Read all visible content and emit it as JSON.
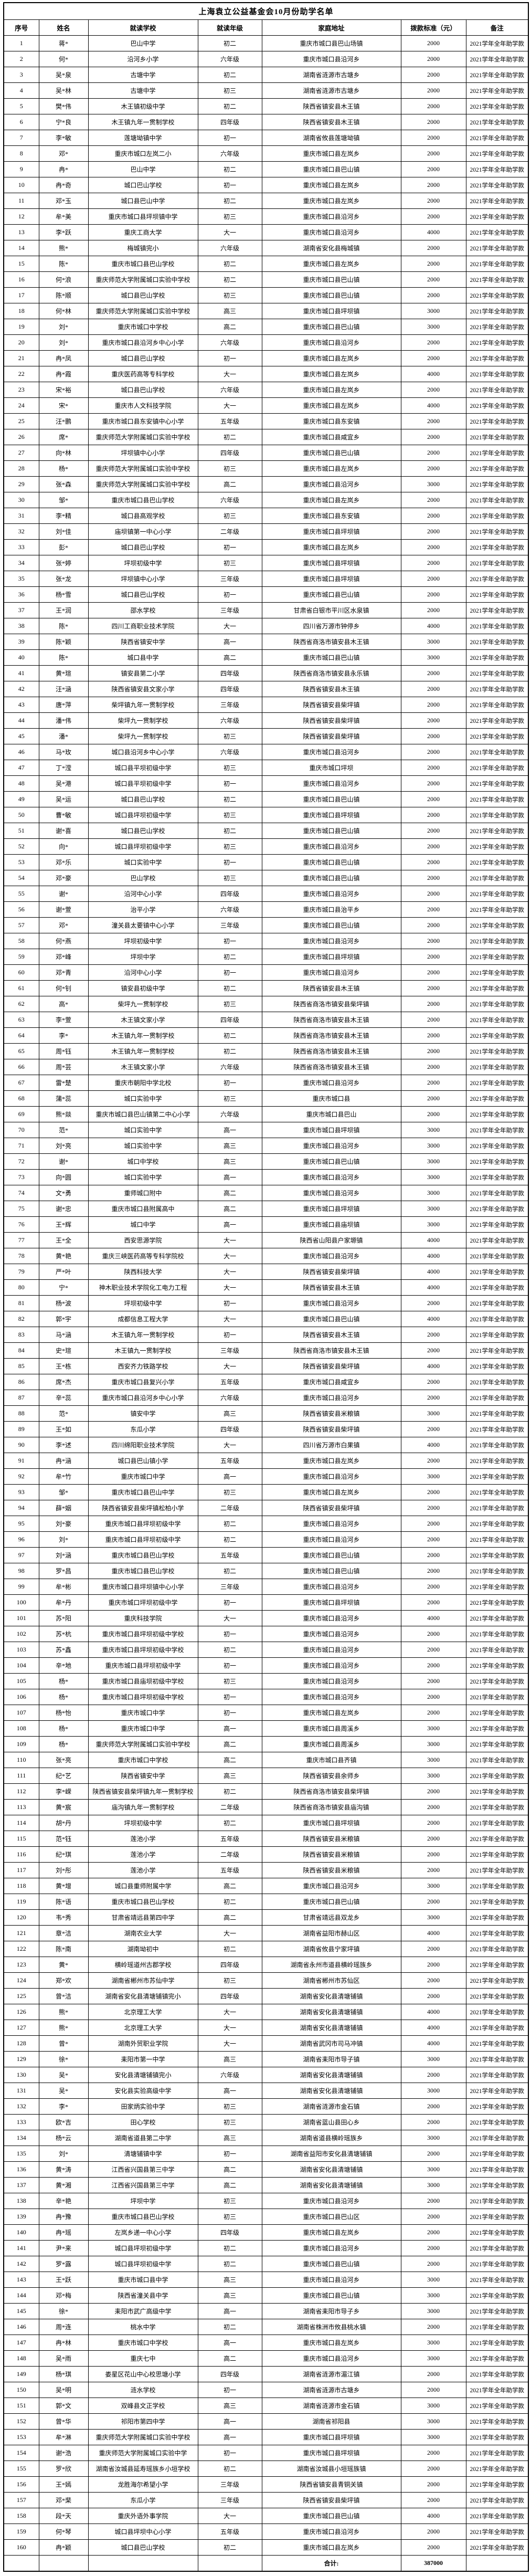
{
  "page": {
    "title": "上海袁立公益基金会10月份助学名单"
  },
  "table": {
    "headers": [
      "序号",
      "姓名",
      "就读学校",
      "就读年级",
      "家庭地址",
      "拨款标准（元）",
      "备注"
    ],
    "note_all_rows": "2021学年全年助学款",
    "rows": [
      [
        "1",
        "蒋*",
        "巴山中学",
        "初二",
        "重庆市城口县巴山场镇",
        "2000"
      ],
      [
        "2",
        "何*",
        "沿河乡小学",
        "六年级",
        "重庆市城口县沿河乡",
        "2000"
      ],
      [
        "3",
        "吴*泉",
        "古塘中学",
        "初二",
        "湖南省涟源市古塘乡",
        "2000"
      ],
      [
        "4",
        "吴*林",
        "古塘中学",
        "初三",
        "湖南省涟源市古塘乡",
        "2000"
      ],
      [
        "5",
        "樊*伟",
        "木王镇初级中学",
        "初二",
        "陕西省镇安县木王镇",
        "2000"
      ],
      [
        "6",
        "宁*良",
        "木王镇九年一贯制学校",
        "四年级",
        "陕西省镇安县木王镇",
        "2000"
      ],
      [
        "7",
        "李*敏",
        "莲塘坳镇中学",
        "初一",
        "湖南省攸县莲塘坳镇",
        "2000"
      ],
      [
        "8",
        "邓*",
        "重庆市城口左岚二小",
        "六年级",
        "重庆市城口县左岚乡",
        "2000"
      ],
      [
        "9",
        "冉*",
        "巴山中学",
        "初二",
        "重庆市城口县巴山镇",
        "2000"
      ],
      [
        "10",
        "冉*奇",
        "城口巴山学校",
        "初一",
        "重庆市城口县左岚乡",
        "2000"
      ],
      [
        "11",
        "邓*玉",
        "城口县巴山中学",
        "初二",
        "重庆市城口县左岚乡",
        "2000"
      ],
      [
        "12",
        "牟*美",
        "重庆市城口县坪坝镇中学",
        "初三",
        "重庆市城口县沿河乡",
        "2000"
      ],
      [
        "13",
        "李*跃",
        "重庆工商大学",
        "大一",
        "重庆市城口县沿河乡",
        "4000"
      ],
      [
        "14",
        "熊*",
        "梅城镇完小",
        "六年级",
        "湖南省安化县梅城镇",
        "2000"
      ],
      [
        "15",
        "陈*",
        "重庆市城口县巴山学校",
        "初二",
        "重庆市城口县左岚乡",
        "2000"
      ],
      [
        "16",
        "何*浪",
        "重庆师范大学附属城口实验中学校",
        "初二",
        "重庆市城口县巴山镇",
        "2000"
      ],
      [
        "17",
        "陈*顺",
        "城口县巴山学校",
        "初三",
        "重庆市城口县巴山镇",
        "2000"
      ],
      [
        "18",
        "何*林",
        "重庆师范大学附属城口实验中学校",
        "高三",
        "重庆市城口县坪坝镇",
        "3000"
      ],
      [
        "19",
        "刘*",
        "重庆市城口中学校",
        "高二",
        "重庆市城口县巴山镇",
        "3000"
      ],
      [
        "20",
        "刘*",
        "重庆市城口县沿河乡中心小学",
        "六年级",
        "重庆市城口县沿河乡",
        "2000"
      ],
      [
        "21",
        "冉*凤",
        "城口县巴山学校",
        "初一",
        "重庆市城口县左岚乡",
        "2000"
      ],
      [
        "22",
        "冉*霞",
        "重庆医药高等专科学校",
        "大一",
        "重庆市城口县左岚乡",
        "4000"
      ],
      [
        "23",
        "宋*裕",
        "城口县巴山学校",
        "六年级",
        "重庆市城口县左岚乡",
        "2000"
      ],
      [
        "24",
        "宋*",
        "重庆市人文科技学院",
        "大一",
        "重庆市城口县左岚乡",
        "4000"
      ],
      [
        "25",
        "汪*鹏",
        "重庆市城口县东安镇中心小学",
        "五年级",
        "重庆市城口县东安镇",
        "2000"
      ],
      [
        "26",
        "席*",
        "重庆师范大学附属城口实验中学校",
        "初二",
        "重庆市城口县咸宜乡",
        "2000"
      ],
      [
        "27",
        "向*林",
        "坪坝镇中心小学",
        "四年级",
        "重庆市城口县巴山镇",
        "2000"
      ],
      [
        "28",
        "杨*",
        "重庆师范大学附属城口实验中学校",
        "初三",
        "重庆市城口县左岚乡",
        "2000"
      ],
      [
        "29",
        "张*森",
        "重庆师范大学附属城口实验中学校",
        "高二",
        "重庆市城口县沿河乡",
        "3000"
      ],
      [
        "30",
        "邹*",
        "重庆市城口县巴山学校",
        "六年级",
        "重庆市城口县左岚乡",
        "2000"
      ],
      [
        "31",
        "李*精",
        "城口县高观学校",
        "初三",
        "重庆市城口县东安镇",
        "2000"
      ],
      [
        "32",
        "刘*佳",
        "庙坝镇第一中心小学",
        "二年级",
        "重庆市城口县坪坝镇",
        "2000"
      ],
      [
        "33",
        "彭*",
        "城口县巴山学校",
        "初一",
        "重庆市城口县左岚乡",
        "2000"
      ],
      [
        "34",
        "张*婷",
        "坪坝初级中学",
        "初三",
        "重庆市城口县坪坝镇",
        "2000"
      ],
      [
        "35",
        "张*龙",
        "坪坝镇中心小学",
        "三年级",
        "重庆市城口县坪坝镇",
        "2000"
      ],
      [
        "36",
        "杨*雪",
        "城口县巴山学校",
        "初一",
        "重庆市城口县巴山镇",
        "2000"
      ],
      [
        "37",
        "王*润",
        "邵水学校",
        "三年级",
        "甘肃省白银市平川区水泉镇",
        "2000"
      ],
      [
        "38",
        "陈*",
        "四川工商职业技术学院",
        "大一",
        "四川省万源市钟停乡",
        "4000"
      ],
      [
        "39",
        "陈*颖",
        "陕西省镇安中学",
        "高一",
        "陕西省商洛市镇安县木王镇",
        "3000"
      ],
      [
        "40",
        "陈*",
        "城口县中学",
        "高二",
        "重庆市城口县巴山镇",
        "3000"
      ],
      [
        "41",
        "黄*瑄",
        "镇安县第二小学",
        "四年级",
        "陕西省商洛市镇安县永乐镇",
        "2000"
      ],
      [
        "42",
        "汪*涵",
        "陕西省镇安县文家小学",
        "四年级",
        "陕西省镇安县木王镇",
        "2000"
      ],
      [
        "43",
        "唐*萍",
        "柴坪镇九年一贯制学校",
        "三年级",
        "陕西省镇安县柴坪镇",
        "2000"
      ],
      [
        "44",
        "潘*伟",
        "柴坪九一贯制学校",
        "六年级",
        "陕西省镇安县柴坪镇",
        "2000"
      ],
      [
        "45",
        "潘*",
        "柴坪九一贯制学校",
        "初三",
        "陕西省镇安县柴坪镇",
        "2000"
      ],
      [
        "46",
        "马*玫",
        "城口县沿河乡中心小学",
        "六年级",
        "重庆市城口县沿河乡",
        "2000"
      ],
      [
        "47",
        "丁*滢",
        "城口县平坝初级中学",
        "初三",
        "重庆市城口坪坝",
        "2000"
      ],
      [
        "48",
        "吴*港",
        "城口县平坝初级中学",
        "初一",
        "重庆市城口县沿河乡",
        "2000"
      ],
      [
        "49",
        "吴*运",
        "城口县巴山学校",
        "初二",
        "重庆市城口县巴山镇",
        "2000"
      ],
      [
        "50",
        "曹*敏",
        "城口县坪坝初级中学",
        "初三",
        "重庆市城口县坪坝镇",
        "2000"
      ],
      [
        "51",
        "谢*喜",
        "城口县巴山学校",
        "初二",
        "重庆市城口县巴山镇",
        "2000"
      ],
      [
        "52",
        "向*",
        "城口县坪坝初级中学",
        "初三",
        "重庆市城口县沿河乡",
        "2000"
      ],
      [
        "53",
        "邓*乐",
        "城口实验中学",
        "初一",
        "重庆市城口县巴山镇",
        "2000"
      ],
      [
        "54",
        "邓*豪",
        "巴山学校",
        "初三",
        "重庆市城口县巴山镇",
        "2000"
      ],
      [
        "55",
        "谢*",
        "沿河中心小学",
        "四年级",
        "重庆市城口县沿河乡",
        "2000"
      ],
      [
        "56",
        "谢*萱",
        "治平小学",
        "六年级",
        "重庆市城口县治平乡",
        "2000"
      ],
      [
        "57",
        "邓*",
        "潼关县太要镇中心小学",
        "三年级",
        "重庆市城口县巴山镇",
        "2000"
      ],
      [
        "58",
        "何*燕",
        "坪坝初级中学",
        "初一",
        "重庆市城口县沿河乡",
        "2000"
      ],
      [
        "59",
        "邓*峰",
        "坪坝中学",
        "初二",
        "重庆市城口县坪坝镇",
        "2000"
      ],
      [
        "60",
        "邓*青",
        "沿河中心小学",
        "初一",
        "重庆市城口县沿河乡",
        "2000"
      ],
      [
        "61",
        "何*钊",
        "镇安县初级中学",
        "初二",
        "陕西省镇安县木王镇",
        "2000"
      ],
      [
        "62",
        "高*",
        "柴坪九一贯制学校",
        "初三",
        "陕西省商洛市镇安县柴坪镇",
        "2000"
      ],
      [
        "63",
        "李*萱",
        "木王镇文家小学",
        "四年级",
        "陕西省商洛市镇安县木王镇",
        "2000"
      ],
      [
        "64",
        "李*",
        "木王镇九年一贯制学校",
        "初二",
        "陕西省商洛市镇安县木王镇",
        "2000"
      ],
      [
        "65",
        "周*钰",
        "木王镇九年一贯制学校",
        "初二",
        "陕西省商洛市镇安县木王镇",
        "2000"
      ],
      [
        "66",
        "周*芸",
        "木王镇文家小学",
        "六年级",
        "陕西省商洛市镇安县木王镇",
        "2000"
      ],
      [
        "67",
        "雷*楚",
        "重庆市朝阳中学北校",
        "初一",
        "重庆市城口县沿河乡",
        "2000"
      ],
      [
        "68",
        "蒲*蕊",
        "城口实验中学",
        "初三",
        "重庆市城口县",
        "2000"
      ],
      [
        "69",
        "熊*燚",
        "重庆市城口县巴山镇第二中心小学",
        "六年级",
        "重庆市城口县巴山",
        "2000"
      ],
      [
        "70",
        "范*",
        "城口实验中学",
        "高一",
        "重庆市城口县坪坝镇",
        "3000"
      ],
      [
        "71",
        "刘*亮",
        "城口实验中学",
        "高三",
        "重庆市城口县沿河乡",
        "3000"
      ],
      [
        "72",
        "谢*",
        "城口中学校",
        "高三",
        "重庆市城口县巴山镇",
        "3000"
      ],
      [
        "73",
        "向*圆",
        "城口实验中学",
        "高一",
        "重庆市城口县沿河乡",
        "3000"
      ],
      [
        "74",
        "文*勇",
        "重师城口附中",
        "高二",
        "重庆市城口县沿河乡",
        "3000"
      ],
      [
        "75",
        "谢*忠",
        "重庆市城口县附属高中",
        "高二",
        "重庆市城口县坪坝镇",
        "3000"
      ],
      [
        "76",
        "王*辉",
        "城口中学",
        "高一",
        "重庆市城口县庙坝镇",
        "3000"
      ],
      [
        "77",
        "王*全",
        "西安思源学院",
        "大一",
        "陕西省山阳县户家塬镇",
        "4000"
      ],
      [
        "78",
        "黄*艳",
        "重庆三峡医药高等专科学院校",
        "大一",
        "重庆市城口县沿河乡",
        "4000"
      ],
      [
        "79",
        "严*叶",
        "陕西科技大学",
        "大一",
        "陕西省镇安县柴坪镇",
        "4000"
      ],
      [
        "80",
        "宁*",
        "神木职业技术学院化工电力工程",
        "大一",
        "陕西省镇安县木王镇",
        "4000"
      ],
      [
        "81",
        "杨*波",
        "坪坝初级中学",
        "初一",
        "重庆市城口县沿河乡",
        "2000"
      ],
      [
        "82",
        "郭*宇",
        "成都信息工程大学",
        "大一",
        "重庆市城口县巴山镇",
        "4000"
      ],
      [
        "83",
        "马*涵",
        "木王镇九年一贯制学校",
        "初一",
        "陕西省镇安县木王镇",
        "2000"
      ],
      [
        "84",
        "史*瑄",
        "木王镇九一贯制学校",
        "三年级",
        "陕西省商洛市镇安县木王镇",
        "2000"
      ],
      [
        "85",
        "王*栋",
        "西安齐力铁路学校",
        "大一",
        "陕西省镇安县柴坪镇",
        "4000"
      ],
      [
        "86",
        "席*杰",
        "重庆市城口县复兴小学",
        "五年级",
        "重庆市城口县咸宜乡",
        "2000"
      ],
      [
        "87",
        "辛*蕊",
        "重庆市城口县沿河乡中心小学",
        "六年级",
        "重庆市城口县沿河乡",
        "2000"
      ],
      [
        "88",
        "范*",
        "镇安中学",
        "高三",
        "陕西省镇安县米粮镇",
        "3000"
      ],
      [
        "89",
        "王*如",
        "东瓜小学",
        "四年级",
        "陕西省镇安县柴坪镇",
        "2000"
      ],
      [
        "90",
        "李*述",
        "四川绵阳职业技术学院",
        "大一",
        "四川省万源市白果镇",
        "4000"
      ],
      [
        "91",
        "冉*涵",
        "城口县巴山镇小学",
        "五年级",
        "重庆市城口县左岚乡",
        "2000"
      ],
      [
        "92",
        "牟*竹",
        "重庆市城口中学",
        "高一",
        "重庆市城口县沿河乡",
        "3000"
      ],
      [
        "93",
        "邹*",
        "重庆市城口县巴山中学",
        "初三",
        "重庆市城口县左岚乡",
        "2000"
      ],
      [
        "94",
        "薛*姻",
        "陕西省镇安县柴坪镇松柏小学",
        "二年级",
        "陕西省镇安县柴坪镇",
        "2000"
      ],
      [
        "95",
        "刘*豪",
        "重庆市城口县坪坝初级中学",
        "初二",
        "重庆市城口县沿河乡",
        "2000"
      ],
      [
        "96",
        "刘*",
        "重庆市城口县坪坝初级中学",
        "初二",
        "重庆市城口县沿河乡",
        "2000"
      ],
      [
        "97",
        "刘*涵",
        "重庆市城口县巴山学校",
        "五年级",
        "重庆市城口县巴山镇",
        "2000"
      ],
      [
        "98",
        "罗*昌",
        "重庆市城口县巴山学校",
        "初二",
        "重庆市城口县巴山镇",
        "2000"
      ],
      [
        "99",
        "牟*彬",
        "重庆市城口县坪坝镇中心小学",
        "三年级",
        "重庆市城口县沿河乡",
        "2000"
      ],
      [
        "100",
        "牟*丹",
        "重庆市城口坪坝初级中学",
        "初一",
        "重庆市城口县坪坝镇",
        "2000"
      ],
      [
        "101",
        "苏*阳",
        "重庆科技学院",
        "大一",
        "重庆市城口县沿河乡",
        "4000"
      ],
      [
        "102",
        "苏*杭",
        "重庆市城口县坪坝初级中学校",
        "初一",
        "重庆市城口县沿河乡",
        "2000"
      ],
      [
        "103",
        "苏*鑫",
        "重庆市城口县坪坝初级中学校",
        "初二",
        "重庆市城口县沿河乡",
        "2000"
      ],
      [
        "104",
        "辛*地",
        "重庆市城口县坪坝初级中学",
        "初一",
        "重庆市城口县沿河乡",
        "2000"
      ],
      [
        "105",
        "杨*",
        "重庆市城口县庙坝初级中学校",
        "初三",
        "重庆市城口县沿河乡",
        "2000"
      ],
      [
        "106",
        "杨*",
        "重庆市城口县坪坝初级中学校",
        "初一",
        "重庆市城口县沿河乡",
        "2000"
      ],
      [
        "107",
        "杨*怡",
        "重庆市城口中学",
        "初一",
        "重庆市城口县左岚乡",
        "2000"
      ],
      [
        "108",
        "杨*",
        "重庆市城口中学",
        "高一",
        "重庆市城口县周溪乡",
        "3000"
      ],
      [
        "109",
        "杨*",
        "重庆师范大学附属城口实验中学校",
        "高二",
        "重庆市城口县周溪乡",
        "3000"
      ],
      [
        "110",
        "张*亮",
        "重庆市城口中学校",
        "高二",
        "重庆市城口县齐镇",
        "3000"
      ],
      [
        "111",
        "纪*艺",
        "陕西省镇安中学",
        "高三",
        "陕西省镇安县余师乡",
        "3000"
      ],
      [
        "112",
        "李*嵘",
        "陕西省镇安县柴坪镇九年一贯制学校",
        "初二",
        "陕西省商洛市镇安县柴坪镇",
        "2000"
      ],
      [
        "113",
        "黄*宸",
        "庙沟镇九年一贯制学校",
        "二年级",
        "陕西省商洛市镇安县庙沟镇",
        "2000"
      ],
      [
        "114",
        "胡*丹",
        "坪坝初级中学",
        "初二",
        "重庆市城口县坪坝镇",
        "2000"
      ],
      [
        "115",
        "范*钰",
        "莲池小学",
        "五年级",
        "陕西省镇安县米粮镇",
        "2000"
      ],
      [
        "116",
        "纪*琪",
        "莲池小学",
        "二年级",
        "陕西省镇安县米粮镇",
        "2000"
      ],
      [
        "117",
        "刘*彤",
        "莲池小学",
        "五年级",
        "陕西省镇安县米粮镇",
        "2000"
      ],
      [
        "118",
        "黄*增",
        "城口县重师附属中学",
        "高二",
        "重庆市城口县沿河乡",
        "3000"
      ],
      [
        "119",
        "陈*语",
        "重庆市城口县巴山学校",
        "初二",
        "重庆市城口县巴山镇",
        "2000"
      ],
      [
        "120",
        "韦*秀",
        "甘肃省靖远县第四中学",
        "高二",
        "甘肃省靖远县双龙乡",
        "3000"
      ],
      [
        "121",
        "章*洁",
        "湖南农业大学",
        "大一",
        "湖南省益阳市赫山区",
        "4000"
      ],
      [
        "122",
        "陈*南",
        "湖南坳初中",
        "初二",
        "湖南省攸县宁家坪镇",
        "2000"
      ],
      [
        "123",
        "黄*",
        "横岭瑶道州古郡学校",
        "四年级",
        "湖南省永州市道县横岭瑶族乡",
        "2000"
      ],
      [
        "124",
        "郑*欢",
        "湖南省郴州市苏仙中学",
        "初三",
        "湖南省郴州市苏仙区",
        "2000"
      ],
      [
        "125",
        "曾*洁",
        "湖南省安化县清塘铺镇完小",
        "四年级",
        "湖南省安化县清塘铺镇",
        "2000"
      ],
      [
        "126",
        "熊*",
        "北京理工大学",
        "大一",
        "湖南省安化县清塘铺镇",
        "4000"
      ],
      [
        "127",
        "熊*",
        "北京理工大学",
        "大一",
        "湖南省安化县清塘铺镇",
        "4000"
      ],
      [
        "128",
        "曾*",
        "湖南外贸职业学院",
        "大一",
        "湖南省武冈市司马冲镇",
        "4000"
      ],
      [
        "129",
        "徐*",
        "耒阳市第一中学",
        "高三",
        "湖南省耒阳市导子镇",
        "3000"
      ],
      [
        "130",
        "吴*",
        "安化县清塘铺镇完小",
        "六年级",
        "湖南省安化县清塘铺镇",
        "2000"
      ],
      [
        "131",
        "吴*",
        "安化县实验高级中学",
        "高一",
        "湖南省安化县清塘铺镇",
        "3000"
      ],
      [
        "132",
        "李*",
        "田家炳实验中学",
        "初三",
        "湖南省涟源市金石镇",
        "2000"
      ],
      [
        "133",
        "欧*吉",
        "田心学校",
        "初三",
        "湖南省蓝山县田心乡",
        "2000"
      ],
      [
        "134",
        "杨*云",
        "湖南省道县第二中学",
        "高三",
        "湖南省道县横岭瑶族乡",
        "3000"
      ],
      [
        "135",
        "刘*",
        "清塘铺镇中学",
        "初一",
        "湖南省益阳市安化县清塘铺镇",
        "2000"
      ],
      [
        "136",
        "黄*涛",
        "江西省兴国县第三中学",
        "高二",
        "湖南省安化县清塘铺镇",
        "3000"
      ],
      [
        "137",
        "黄*湘",
        "江西省兴国县第三中学",
        "高二",
        "湖南省安化县清塘铺镇",
        "3000"
      ],
      [
        "138",
        "辛*艳",
        "坪坝中学",
        "初三",
        "重庆市城口县沿河乡",
        "2000"
      ],
      [
        "139",
        "冉*豫",
        "重庆市城口县巴山学校",
        "初三",
        "重庆市城口县巴山区",
        "2000"
      ],
      [
        "140",
        "冉*瑶",
        "左岚乡递一中心小学",
        "四年级",
        "重庆市城口县左岚乡",
        "2000"
      ],
      [
        "141",
        "尹*来",
        "城口县坪坝初级中学",
        "初二",
        "重庆市城口县沿河乡",
        "2000"
      ],
      [
        "142",
        "罗*露",
        "城口县坪坝初级中学",
        "初二",
        "重庆市城口县巴山镇",
        "2000"
      ],
      [
        "143",
        "王*跃",
        "重庆市城口县中学",
        "高三",
        "重庆市城口县沿河乡",
        "3000"
      ],
      [
        "144",
        "邓*梅",
        "陕西省潼关县中学",
        "高三",
        "重庆市城口县巴山镇",
        "3000"
      ],
      [
        "145",
        "徐*",
        "耒阳市武广高级中学",
        "高一",
        "湖南省耒阳市导子乡",
        "3000"
      ],
      [
        "146",
        "周*连",
        "桃水中学",
        "初二",
        "湖南省株洲市攸县桃水镇",
        "2000"
      ],
      [
        "147",
        "冉*林",
        "重庆市城口中学校",
        "高一",
        "重庆市城口县左岚乡",
        "3000"
      ],
      [
        "148",
        "吴*雨",
        "重庆七中",
        "高二",
        "重庆市城口县沿河乡",
        "3000"
      ],
      [
        "149",
        "杨*琪",
        "娄星区花山中心校思塘小学",
        "四年级",
        "湖南省涟源市湄江镇",
        "2000"
      ],
      [
        "150",
        "吴*明",
        "涟水学校",
        "初一",
        "湖南省涟源市古塘乡",
        "2000"
      ],
      [
        "151",
        "郭*文",
        "双峰县文正学校",
        "高三",
        "湖南省涟源市金石镇",
        "3000"
      ],
      [
        "152",
        "曾*华",
        "祁阳市第四中学",
        "高一",
        "湖南省祁阳县",
        "3000"
      ],
      [
        "153",
        "牟*淋",
        "重庆师范大学附属城口实验中学校",
        "高一",
        "重庆市城口县坪坝镇",
        "3000"
      ],
      [
        "154",
        "谢*浩",
        "重庆师范大学附属城口实验中学",
        "初一",
        "重庆市城口县坪坝镇",
        "2000"
      ],
      [
        "155",
        "罗*欣",
        "湖南省汝城县延寿瑶族乡小垣学校",
        "初二",
        "湖南省汝城县小垣瑶族镇",
        "2000"
      ],
      [
        "156",
        "王*嫣",
        "龙胜海尔希望小学",
        "三年级",
        "陕西省镇安县青铜关镇",
        "2000"
      ],
      [
        "157",
        "邓*棐",
        "东瓜小学",
        "三年级",
        "陕西省镇安县柴坪镇",
        "2000"
      ],
      [
        "158",
        "段*天",
        "重庆外语外事学院",
        "大一",
        "重庆市城口县巴山镇",
        "4000"
      ],
      [
        "159",
        "何*琴",
        "城口县坪坝中心小学",
        "五年级",
        "重庆市城口县沿河乡",
        "2000"
      ],
      [
        "160",
        "冉*颖",
        "城口县巴山学校",
        "初二",
        "重庆市城口县左岚乡",
        "2000"
      ]
    ],
    "footer": {
      "label": "合计:",
      "total": "387000"
    }
  }
}
